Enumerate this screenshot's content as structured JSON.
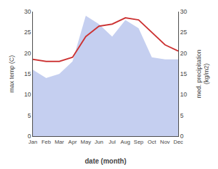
{
  "chart_data": {
    "type": "line",
    "categories": [
      "Jan",
      "Feb",
      "Mar",
      "Apr",
      "May",
      "Jun",
      "Jul",
      "Aug",
      "Sep",
      "Oct",
      "Nov",
      "Dec"
    ],
    "series": [
      {
        "type": "area",
        "axis": "y2",
        "color": "#c5cff0",
        "values": [
          16,
          14,
          15,
          18,
          29,
          27,
          24,
          28,
          26,
          19,
          18.5,
          18.5
        ]
      },
      {
        "type": "line",
        "color": "#cc3333",
        "values": [
          18.5,
          18.0,
          18.0,
          19.0,
          24.0,
          26.5,
          27.0,
          28.5,
          28.0,
          25.0,
          22.0,
          20.5
        ]
      }
    ],
    "xlabel": "date (month)",
    "ylabel": "max temp (C)",
    "y2label": "med. precipitation\n(kg/m2)",
    "ylim": [
      0,
      30
    ],
    "yticks": [
      0,
      5,
      10,
      15,
      20,
      25,
      30
    ],
    "y2lim": [
      0,
      30
    ],
    "y2ticks": [
      0,
      5,
      10,
      15,
      20,
      25,
      30
    ],
    "grid": false,
    "legend": false
  }
}
